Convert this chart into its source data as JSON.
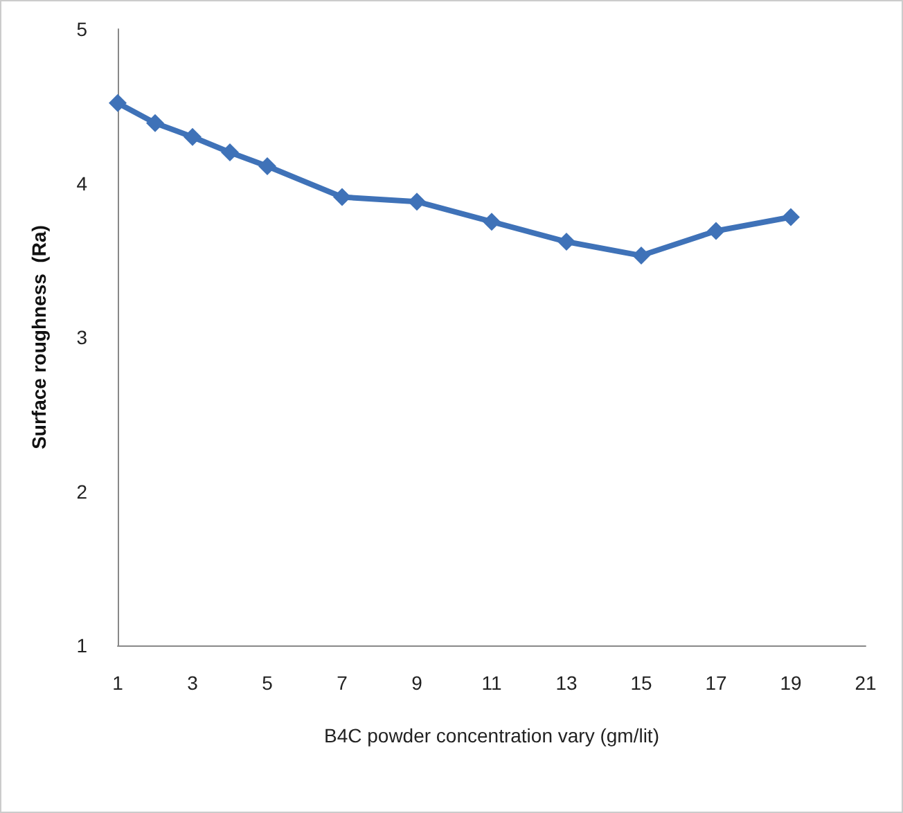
{
  "chart_data": {
    "type": "line",
    "xlabel": "B4C powder concentration vary (gm/lit)",
    "ylabel": "Surface roughness  (Ra)",
    "x": [
      1,
      2,
      3,
      4,
      5,
      7,
      9,
      11,
      13,
      15,
      17,
      19
    ],
    "series": [
      {
        "color": "#3f72b8",
        "values": [
          4.52,
          4.39,
          4.3,
          4.2,
          4.11,
          3.91,
          3.88,
          3.75,
          3.62,
          3.53,
          3.69,
          3.78
        ]
      }
    ],
    "xlim": [
      1,
      21
    ],
    "xticks": [
      1,
      3,
      5,
      7,
      9,
      11,
      13,
      15,
      17,
      19,
      21
    ],
    "ylim": [
      1,
      5
    ],
    "yticks": [
      1,
      2,
      3,
      4,
      5
    ],
    "grid": false,
    "marker": "diamond",
    "line_style": "solid"
  }
}
